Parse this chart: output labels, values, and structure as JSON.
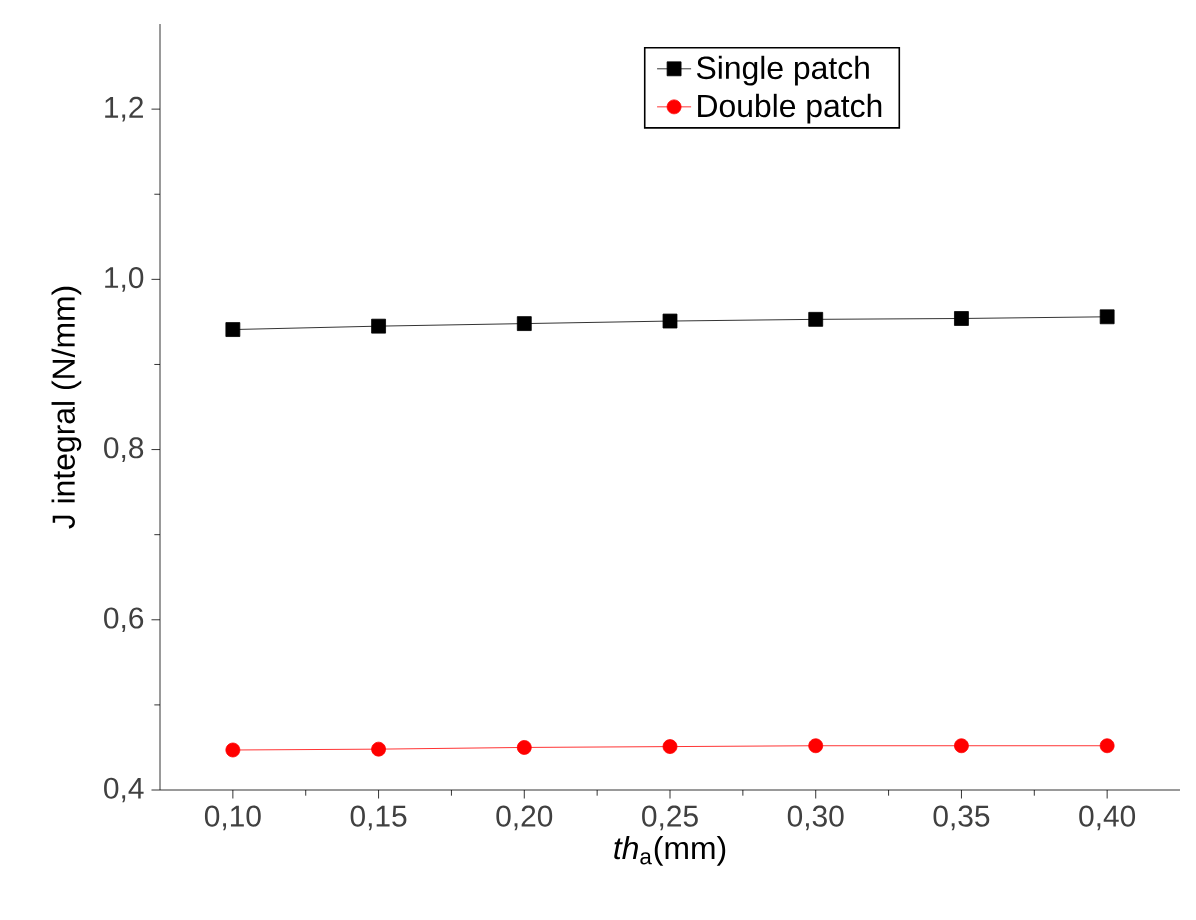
{
  "chart_data": {
    "type": "line",
    "xlabel": "*th*$_{a}$(mm)",
    "ylabel": "J integral (N/mm)",
    "x": [
      0.1,
      0.15,
      0.2,
      0.25,
      0.3,
      0.35,
      0.4
    ],
    "series": [
      {
        "name": "Single patch",
        "color": "#000000",
        "marker": "square",
        "values": [
          0.941,
          0.945,
          0.948,
          0.951,
          0.953,
          0.954,
          0.956
        ]
      },
      {
        "name": "Double patch",
        "color": "#ff0000",
        "marker": "circle",
        "values": [
          0.447,
          0.448,
          0.45,
          0.451,
          0.452,
          0.452,
          0.452
        ]
      }
    ],
    "xlim": [
      0.075,
      0.425
    ],
    "ylim": [
      0.4,
      1.3
    ],
    "xticks": [
      {
        "value": 0.1,
        "label": "0,10"
      },
      {
        "value": 0.15,
        "label": "0,15"
      },
      {
        "value": 0.2,
        "label": "0,20"
      },
      {
        "value": 0.25,
        "label": "0,25"
      },
      {
        "value": 0.3,
        "label": "0,30"
      },
      {
        "value": 0.35,
        "label": "0,35"
      },
      {
        "value": 0.4,
        "label": "0,40"
      }
    ],
    "yticks": [
      {
        "value": 0.4,
        "label": "0,4"
      },
      {
        "value": 0.6,
        "label": "0,6"
      },
      {
        "value": 0.8,
        "label": "0,8"
      },
      {
        "value": 1.0,
        "label": "1,0"
      },
      {
        "value": 1.2,
        "label": "1,2"
      }
    ],
    "legend": "top",
    "grid": false,
    "line_style": "solid"
  }
}
